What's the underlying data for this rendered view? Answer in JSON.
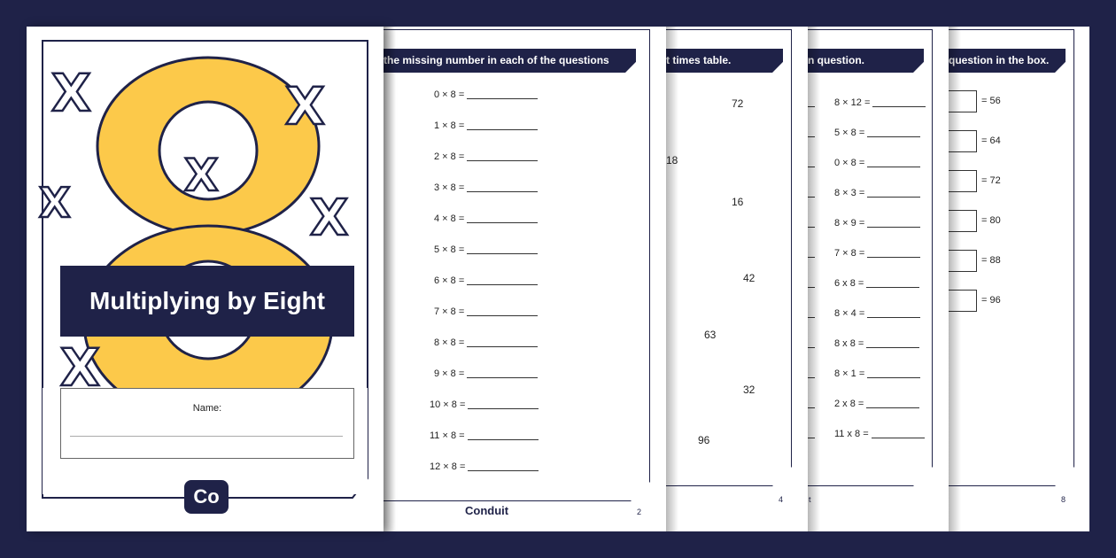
{
  "cover": {
    "title": "Multiplying by Eight",
    "name_label": "Name:",
    "logo": "Co",
    "big_digit": "8",
    "colors": {
      "navy": "#1f2248",
      "yellow": "#fcc94a"
    }
  },
  "page2": {
    "instruction": "the missing number in each of the questions below.",
    "questions": [
      "0 × 8 =",
      "1 × 8 =",
      "2 × 8 =",
      "3 × 8 =",
      "4 × 8 =",
      "5 × 8 =",
      "6 × 8 =",
      "7 × 8 =",
      "8 × 8 =",
      "9 × 8 =",
      "10 × 8 =",
      "11 × 8 =",
      "12 × 8 ="
    ],
    "brand": "Conduit",
    "page_number": "2"
  },
  "page4": {
    "instruction": "t times table.",
    "numbers": [
      "72",
      "18",
      "16",
      "42",
      "63",
      "32",
      "96"
    ],
    "page_number": "4"
  },
  "page6": {
    "instruction": "n question.",
    "questions": [
      "8 × 12 =",
      "5 × 8 =",
      "0 × 8 =",
      "8 × 3 =",
      "8 × 9 =",
      "7 × 8 =",
      "6 x 8 =",
      "8 × 4 =",
      "8 x 8 =",
      "8 × 1 =",
      "2 x 8  =",
      "11 x 8  ="
    ],
    "footer_fragment": "t"
  },
  "page8": {
    "instruction": "question in the box.",
    "answers": [
      "= 56",
      "= 64",
      "= 72",
      "= 80",
      "= 88",
      "= 96"
    ],
    "page_number": "8"
  }
}
